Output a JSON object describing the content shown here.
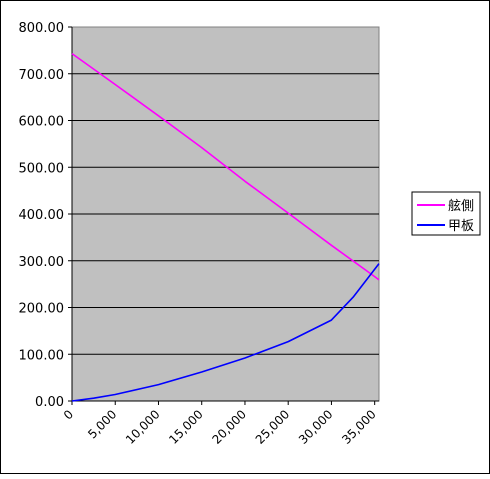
{
  "chart_data": {
    "type": "line",
    "title": "",
    "xlabel": "",
    "ylabel": "",
    "xlim": [
      0,
      35500
    ],
    "ylim": [
      0,
      800
    ],
    "x_ticks": [
      0,
      5000,
      10000,
      15000,
      20000,
      25000,
      30000,
      35000
    ],
    "x_tick_labels": [
      "0",
      "5,000",
      "10,000",
      "15,000",
      "20,000",
      "25,000",
      "30,000",
      "35,000"
    ],
    "y_ticks": [
      0,
      100,
      200,
      300,
      400,
      500,
      600,
      700,
      800
    ],
    "y_tick_labels": [
      "0.00",
      "100.00",
      "200.00",
      "300.00",
      "400.00",
      "500.00",
      "600.00",
      "700.00",
      "800.00"
    ],
    "grid": "horizontal",
    "legend_position": "right",
    "plot_background": "#c0c0c0",
    "series": [
      {
        "name": "舷側",
        "color": "#ff00ff",
        "x": [
          0,
          5000,
          10000,
          15000,
          20000,
          25000,
          30000,
          35000,
          35500
        ],
        "y": [
          743,
          677,
          610,
          542,
          470,
          402,
          333,
          266,
          259
        ]
      },
      {
        "name": "甲板",
        "color": "#0000ff",
        "x": [
          0,
          2500,
          5000,
          10000,
          15000,
          20000,
          25000,
          30000,
          32500,
          35500
        ],
        "y": [
          0,
          6,
          14,
          35,
          62,
          92,
          127,
          173,
          222,
          294
        ]
      }
    ]
  }
}
